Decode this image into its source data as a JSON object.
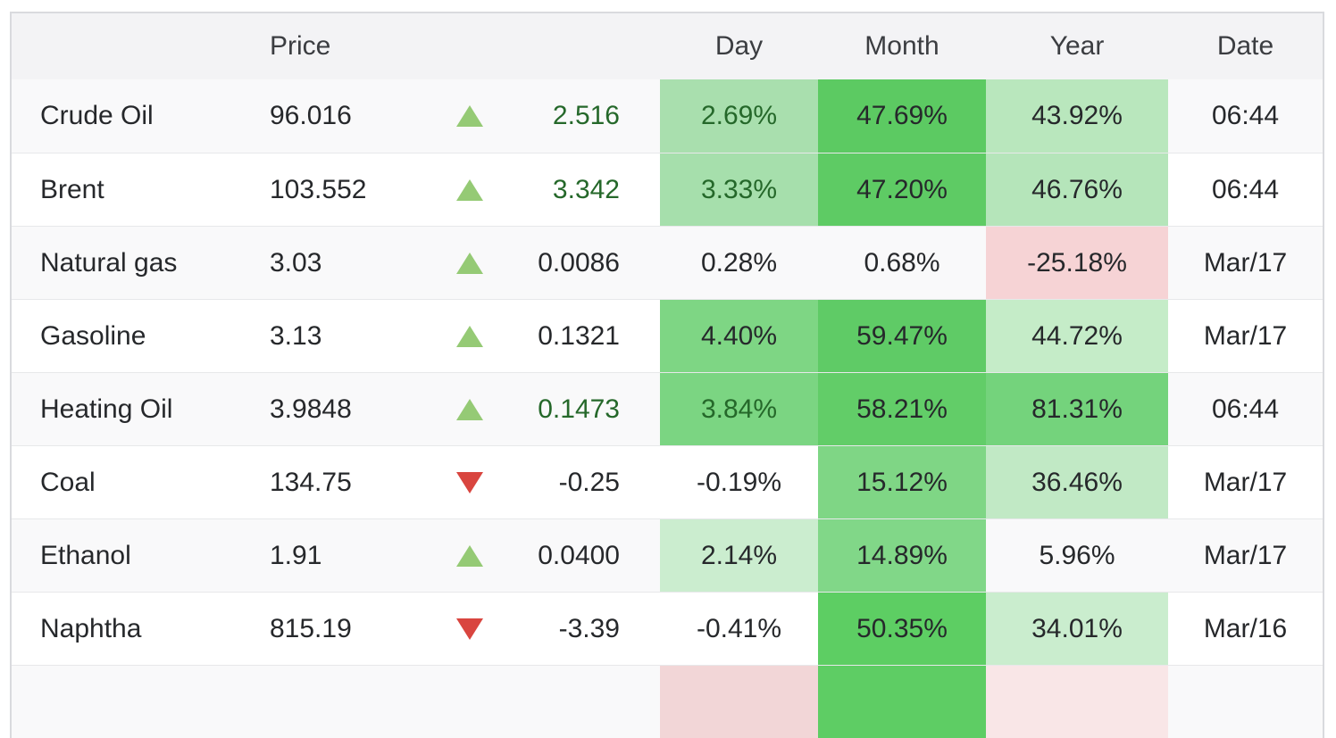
{
  "table": {
    "headers": {
      "name": "",
      "price": "Price",
      "change": "",
      "day": "Day",
      "month": "Month",
      "year": "Year",
      "date": "Date"
    },
    "rows": [
      {
        "name": "Crude Oil",
        "price": "96.016",
        "direction": "up",
        "change": "2.516",
        "live": true,
        "day": "2.69%",
        "month": "47.69%",
        "year": "43.92%",
        "date": "06:44",
        "day_bg": "#a9dfae",
        "month_bg": "#5cca62",
        "year_bg": "#b9e7bd"
      },
      {
        "name": "Brent",
        "price": "103.552",
        "direction": "up",
        "change": "3.342",
        "live": true,
        "day": "3.33%",
        "month": "47.20%",
        "year": "46.76%",
        "date": "06:44",
        "day_bg": "#a6dfac",
        "month_bg": "#5ecb64",
        "year_bg": "#b5e5ba"
      },
      {
        "name": "Natural gas",
        "price": "3.03",
        "direction": "up",
        "change": "0.0086",
        "live": false,
        "day": "0.28%",
        "month": "0.68%",
        "year": "-25.18%",
        "date": "Mar/17",
        "day_bg": "",
        "month_bg": "",
        "year_bg": "#f6d3d5"
      },
      {
        "name": "Gasoline",
        "price": "3.13",
        "direction": "up",
        "change": "0.1321",
        "live": false,
        "day": "4.40%",
        "month": "59.47%",
        "year": "44.72%",
        "date": "Mar/17",
        "day_bg": "#7ed684",
        "month_bg": "#5fcb66",
        "year_bg": "#c5ecc8"
      },
      {
        "name": "Heating Oil",
        "price": "3.9848",
        "direction": "up",
        "change": "0.1473",
        "live": true,
        "day": "3.84%",
        "month": "58.21%",
        "year": "81.31%",
        "date": "06:44",
        "day_bg": "#7bd582",
        "month_bg": "#62cd68",
        "year_bg": "#74d37c"
      },
      {
        "name": "Coal",
        "price": "134.75",
        "direction": "down",
        "change": "-0.25",
        "live": false,
        "day": "-0.19%",
        "month": "15.12%",
        "year": "36.46%",
        "date": "Mar/17",
        "day_bg": "",
        "month_bg": "#7fd685",
        "year_bg": "#c1e9c5"
      },
      {
        "name": "Ethanol",
        "price": "1.91",
        "direction": "up",
        "change": "0.0400",
        "live": false,
        "day": "2.14%",
        "month": "14.89%",
        "year": "5.96%",
        "date": "Mar/17",
        "day_bg": "#cbedcf",
        "month_bg": "#81d788",
        "year_bg": ""
      },
      {
        "name": "Naphtha",
        "price": "815.19",
        "direction": "down",
        "change": "-3.39",
        "live": false,
        "day": "-0.41%",
        "month": "50.35%",
        "year": "34.01%",
        "date": "Mar/16",
        "day_bg": "",
        "month_bg": "#5dce63",
        "year_bg": "#caedce"
      },
      {
        "name": "",
        "price": "",
        "direction": "none",
        "change": "",
        "live": false,
        "day": "",
        "month": "",
        "year": "",
        "date": "",
        "day_bg": "#f2d6d7",
        "month_bg": "#5ecd64",
        "year_bg": "#f9e6e7"
      }
    ]
  },
  "colors": {
    "up_arrow": "#95ca75",
    "down_arrow": "#d9453f",
    "positive_text": "#25682a",
    "negative_heat": "#f6d3d5",
    "strong_green_heat": "#5cca62",
    "header_bg": "#f3f3f5"
  }
}
